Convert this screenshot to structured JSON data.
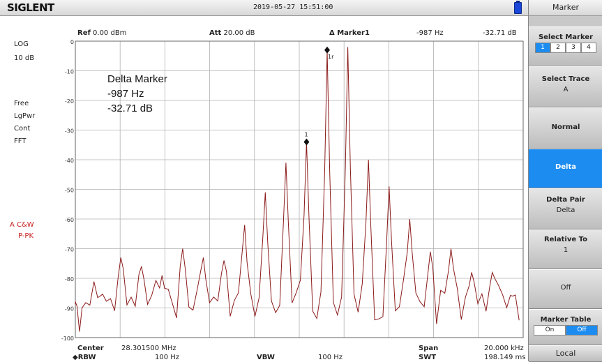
{
  "header": {
    "logo": "SIGLENT",
    "datetime": "2019-05-27  15:51:00"
  },
  "left_panel": {
    "scale_type": "LOG",
    "scale_div": "10 dB",
    "trig": "Free",
    "detector": "LgPwr",
    "sweep": "Cont",
    "mode": "FFT",
    "trace": "A C&W",
    "trace_det": "P-PK"
  },
  "plot_header": {
    "ref_label": "Ref",
    "ref_value": "0.00 dBm",
    "att_label": "Att",
    "att_value": "20.00 dB",
    "marker_label": "Δ Marker1",
    "marker_freq": "-987 Hz",
    "marker_amp": "-32.71 dB"
  },
  "delta_marker": {
    "title": "Delta Marker",
    "freq": "-987 Hz",
    "amp": "-32.71 dB"
  },
  "marker_labels": {
    "m1": "1",
    "m1r": "1r"
  },
  "bottom": {
    "center_label": "Center",
    "center_value": "28.301500 MHz",
    "span_label": "Span",
    "span_value": "20.000 kHz",
    "rbw_label": "RBW",
    "rbw_value": "100 Hz",
    "vbw_label": "VBW",
    "vbw_value": "100 Hz",
    "swt_label": "SWT",
    "swt_value": "198.149 ms"
  },
  "y_ticks": [
    "0",
    "-10",
    "-20",
    "-30",
    "-40",
    "-50",
    "-60",
    "-70",
    "-80",
    "-90",
    "-100"
  ],
  "sidebar": {
    "title": "Marker",
    "select_marker": "Select Marker",
    "marker_nums": [
      "1",
      "2",
      "3",
      "4"
    ],
    "select_trace": "Select Trace",
    "select_trace_val": "A",
    "normal": "Normal",
    "delta": "Delta",
    "delta_pair": "Delta Pair",
    "delta_pair_val": "Delta",
    "relative_to": "Relative To",
    "relative_to_val": "1",
    "off": "Off",
    "marker_table": "Marker Table",
    "on_label": "On",
    "off_label": "Off",
    "local": "Local"
  },
  "chart_data": {
    "type": "line",
    "title": "",
    "xlabel": "",
    "ylabel": "",
    "ylim": [
      -100,
      0
    ],
    "peaks_dbm": [
      -98,
      -86,
      -73,
      -76,
      -79,
      -70,
      -73,
      -74,
      -62,
      -51,
      -41,
      -34,
      -3,
      -2,
      -40,
      -49,
      -60,
      -71,
      -70,
      -78,
      -78,
      -86
    ]
  },
  "colors": {
    "trace": "#8b1a1a",
    "accent": "#1c8cf0",
    "grid": "#b0b0b0"
  }
}
